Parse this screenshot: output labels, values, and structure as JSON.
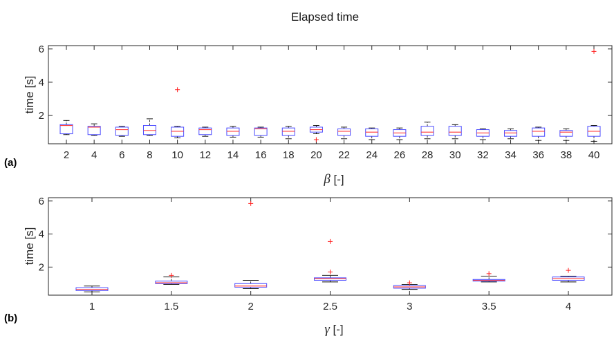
{
  "title": "Elapsed time",
  "colors": {
    "box": "#4a4aff",
    "median": "#ff3b3b",
    "whisker": "#000000",
    "outlier": "#ff2020",
    "axis": "#262626"
  },
  "chart_data": [
    {
      "type": "box",
      "panel_label": "(a)",
      "xlabel_symbol": "β",
      "xlabel_suffix": " [-]",
      "ylabel": "time [s]",
      "ylim": [
        0.3,
        6.2
      ],
      "yticks": [
        2,
        4,
        6
      ],
      "categories": [
        "2",
        "4",
        "6",
        "8",
        "10",
        "12",
        "14",
        "16",
        "18",
        "20",
        "22",
        "24",
        "26",
        "28",
        "30",
        "32",
        "34",
        "36",
        "38",
        "40"
      ],
      "boxes": [
        {
          "whislo": 0.85,
          "q1": 0.9,
          "med": 1.4,
          "q3": 1.45,
          "whishi": 1.7,
          "outliers": []
        },
        {
          "whislo": 0.8,
          "q1": 0.85,
          "med": 1.3,
          "q3": 1.35,
          "whishi": 1.5,
          "outliers": []
        },
        {
          "whislo": 0.75,
          "q1": 0.8,
          "med": 1.15,
          "q3": 1.3,
          "whishi": 1.35,
          "outliers": []
        },
        {
          "whislo": 0.8,
          "q1": 0.85,
          "med": 1.1,
          "q3": 1.4,
          "whishi": 1.8,
          "outliers": []
        },
        {
          "whislo": 0.65,
          "q1": 0.75,
          "med": 1.05,
          "q3": 1.3,
          "whishi": 1.35,
          "outliers": [
            3.55
          ]
        },
        {
          "whislo": 0.75,
          "q1": 0.85,
          "med": 1.15,
          "q3": 1.25,
          "whishi": 1.3,
          "outliers": []
        },
        {
          "whislo": 0.7,
          "q1": 0.8,
          "med": 1.05,
          "q3": 1.25,
          "whishi": 1.35,
          "outliers": []
        },
        {
          "whislo": 0.7,
          "q1": 0.8,
          "med": 1.2,
          "q3": 1.25,
          "whishi": 1.3,
          "outliers": []
        },
        {
          "whislo": 0.6,
          "q1": 0.8,
          "med": 1.05,
          "q3": 1.25,
          "whishi": 1.35,
          "outliers": []
        },
        {
          "whislo": 0.9,
          "q1": 1.0,
          "med": 1.15,
          "q3": 1.3,
          "whishi": 1.4,
          "outliers": [
            0.55
          ]
        },
        {
          "whislo": 0.6,
          "q1": 0.8,
          "med": 1.05,
          "q3": 1.2,
          "whishi": 1.3,
          "outliers": []
        },
        {
          "whislo": 0.55,
          "q1": 0.75,
          "med": 1.0,
          "q3": 1.2,
          "whishi": 1.25,
          "outliers": []
        },
        {
          "whislo": 0.55,
          "q1": 0.75,
          "med": 0.95,
          "q3": 1.15,
          "whishi": 1.25,
          "outliers": []
        },
        {
          "whislo": 0.6,
          "q1": 0.8,
          "med": 1.0,
          "q3": 1.35,
          "whishi": 1.6,
          "outliers": []
        },
        {
          "whislo": 0.6,
          "q1": 0.8,
          "med": 1.0,
          "q3": 1.35,
          "whishi": 1.45,
          "outliers": []
        },
        {
          "whislo": 0.55,
          "q1": 0.75,
          "med": 0.95,
          "q3": 1.15,
          "whishi": 1.2,
          "outliers": []
        },
        {
          "whislo": 0.6,
          "q1": 0.75,
          "med": 0.95,
          "q3": 1.1,
          "whishi": 1.2,
          "outliers": []
        },
        {
          "whislo": 0.5,
          "q1": 0.75,
          "med": 1.05,
          "q3": 1.25,
          "whishi": 1.3,
          "outliers": []
        },
        {
          "whislo": 0.5,
          "q1": 0.75,
          "med": 1.0,
          "q3": 1.1,
          "whishi": 1.2,
          "outliers": []
        },
        {
          "whislo": 0.45,
          "q1": 0.75,
          "med": 1.05,
          "q3": 1.35,
          "whishi": 1.4,
          "outliers": [
            5.85
          ]
        }
      ]
    },
    {
      "type": "box",
      "panel_label": "(b)",
      "xlabel_symbol": "γ",
      "xlabel_suffix": " [-]",
      "ylabel": "time [s]",
      "ylim": [
        0.3,
        6.2
      ],
      "yticks": [
        2,
        4,
        6
      ],
      "categories": [
        "1",
        "1.5",
        "2",
        "2.5",
        "3",
        "3.5",
        "4"
      ],
      "boxes": [
        {
          "whislo": 0.5,
          "q1": 0.58,
          "med": 0.65,
          "q3": 0.75,
          "whishi": 0.85,
          "outliers": []
        },
        {
          "whislo": 0.95,
          "q1": 1.0,
          "med": 1.05,
          "q3": 1.15,
          "whishi": 1.4,
          "outliers": [
            1.5
          ]
        },
        {
          "whislo": 0.7,
          "q1": 0.78,
          "med": 0.85,
          "q3": 1.0,
          "whishi": 1.2,
          "outliers": [
            5.85
          ]
        },
        {
          "whislo": 1.1,
          "q1": 1.2,
          "med": 1.3,
          "q3": 1.35,
          "whishi": 1.5,
          "outliers": [
            3.55,
            1.7
          ]
        },
        {
          "whislo": 0.65,
          "q1": 0.72,
          "med": 0.8,
          "q3": 0.88,
          "whishi": 0.95,
          "outliers": [
            1.05
          ]
        },
        {
          "whislo": 1.1,
          "q1": 1.15,
          "med": 1.2,
          "q3": 1.25,
          "whishi": 1.45,
          "outliers": [
            1.6
          ]
        },
        {
          "whislo": 1.1,
          "q1": 1.2,
          "med": 1.3,
          "q3": 1.4,
          "whishi": 1.45,
          "outliers": [
            1.8
          ]
        }
      ]
    }
  ]
}
